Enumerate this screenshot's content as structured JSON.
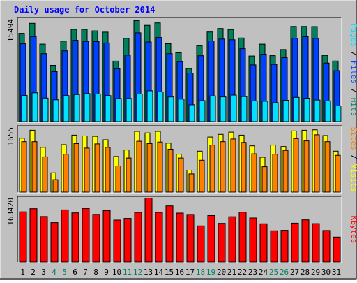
{
  "chart_data": {
    "type": "bar",
    "title": "Daily usage for October 2014",
    "categories": [
      "1",
      "2",
      "3",
      "4",
      "5",
      "6",
      "7",
      "8",
      "9",
      "10",
      "11",
      "12",
      "13",
      "14",
      "15",
      "16",
      "17",
      "18",
      "19",
      "20",
      "21",
      "22",
      "23",
      "24",
      "25",
      "26",
      "27",
      "28",
      "29",
      "30",
      "31"
    ],
    "weekend_categories": [
      "4",
      "5",
      "11",
      "12",
      "18",
      "19",
      "25",
      "26"
    ],
    "panels": [
      {
        "name": "hits-files-pages",
        "ymax_label": "15494",
        "ylim": [
          0,
          15494
        ],
        "right_label": [
          "Pages",
          "Files",
          "Hits"
        ],
        "right_label_separator": " / ",
        "series": [
          {
            "name": "Hits",
            "color": "#00805c",
            "values": [
              13600,
              15140,
              11930,
              8660,
              12400,
              14200,
              14200,
              13980,
              13780,
              9320,
              12830,
              15560,
              14830,
              15200,
              12000,
              10600,
              8180,
              11700,
              13800,
              14340,
              14180,
              12880,
              10100,
              11930,
              10160,
              11090,
              14660,
              14660,
              14630,
              10200,
              9330
            ]
          },
          {
            "name": "Files",
            "color": "#0040ff",
            "values": [
              11990,
              13090,
              10470,
              7690,
              10900,
              12520,
              12350,
              12330,
              12120,
              8150,
              10230,
              13680,
              12270,
              12950,
              10470,
              9230,
              7480,
              10150,
              12430,
              12720,
              12610,
              11230,
              8730,
              10380,
              8800,
              9850,
              12850,
              13070,
              12830,
              9020,
              7840
            ]
          },
          {
            "name": "Pages",
            "color": "#00e0ff",
            "values": [
              4020,
              4430,
              3630,
              3360,
              4000,
              4160,
              4310,
              4250,
              4000,
              3560,
              3560,
              4250,
              4740,
              4580,
              3800,
              3460,
              2590,
              3230,
              3960,
              3810,
              4090,
              3850,
              3180,
              3130,
              2920,
              3280,
              3730,
              3600,
              3330,
              3180,
              2420
            ]
          }
        ]
      },
      {
        "name": "visits-sites",
        "ymax_label": "1655",
        "ylim": [
          0,
          1655
        ],
        "right_label": [
          "Sites",
          "Visits"
        ],
        "right_label_separator": " / ",
        "series": [
          {
            "name": "Visits",
            "color": "#ffff00",
            "values": [
              1420,
              1630,
              1180,
              510,
              1250,
              1500,
              1480,
              1470,
              1380,
              940,
              1110,
              1600,
              1560,
              1600,
              1290,
              1000,
              580,
              1080,
              1450,
              1520,
              1580,
              1500,
              1220,
              920,
              1240,
              1200,
              1610,
              1630,
              1640,
              1490,
              1080
            ]
          },
          {
            "name": "Sites",
            "color": "#ff8000",
            "values": [
              1330,
              1330,
              930,
              330,
              1000,
              1280,
              1160,
              1270,
              1180,
              690,
              900,
              1340,
              1280,
              1320,
              1130,
              900,
              480,
              840,
              1240,
              1330,
              1400,
              1310,
              1010,
              670,
              1000,
              1100,
              1410,
              1350,
              1510,
              1330,
              970
            ]
          }
        ]
      },
      {
        "name": "kbytes",
        "ymax_label": "163420",
        "ylim": [
          0,
          163420
        ],
        "right_label": [
          "KBytes"
        ],
        "right_label_separator": "",
        "series": [
          {
            "name": "KBytes",
            "color": "#ff0000",
            "values": [
              131800,
              140160,
              119600,
              103500,
              137000,
              129000,
              140800,
              125240,
              134900,
              110100,
              114500,
              130400,
              168000,
              130400,
              147450,
              128600,
              125100,
              94900,
              122100,
              101600,
              119000,
              131000,
              115600,
              100500,
              82150,
              83400,
              102000,
              110700,
              100800,
              82850,
              65520
            ]
          }
        ]
      }
    ],
    "colors": {
      "background": "#c0c0c0",
      "title": "#0000ff",
      "axis_text": "#000000",
      "weekend_text": "#00805c",
      "bar_outline": "#000000",
      "Hits": "#00805c",
      "Files": "#0040ff",
      "Pages": "#00e0ff",
      "Visits": "#ffff00",
      "Sites": "#ff8000",
      "KBytes": "#ff0000"
    },
    "grid": false,
    "legend": "right-vertical"
  }
}
